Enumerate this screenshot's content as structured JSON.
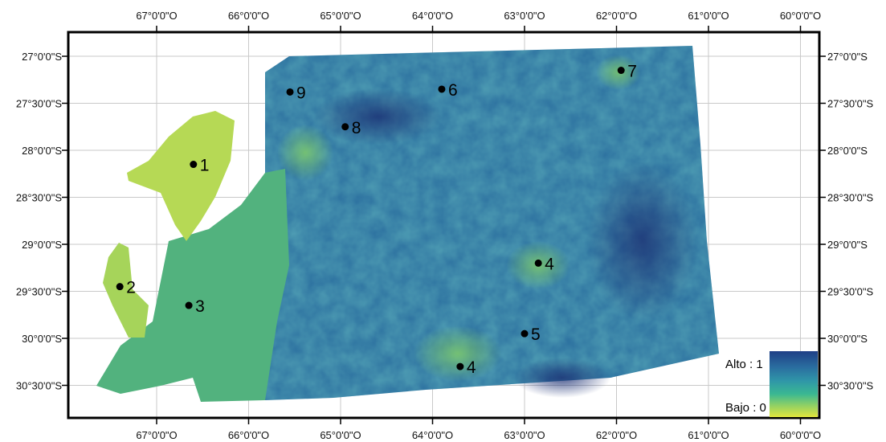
{
  "map": {
    "lon_ticks": [
      {
        "lon": -67,
        "label": "67°0'0\"O"
      },
      {
        "lon": -66,
        "label": "66°0'0\"O"
      },
      {
        "lon": -65,
        "label": "65°0'0\"O"
      },
      {
        "lon": -64,
        "label": "64°0'0\"O"
      },
      {
        "lon": -63,
        "label": "63°0'0\"O"
      },
      {
        "lon": -62,
        "label": "62°0'0\"O"
      },
      {
        "lon": -61,
        "label": "61°0'0\"O"
      },
      {
        "lon": -60,
        "label": "60°0'0\"O"
      }
    ],
    "lat_ticks": [
      {
        "lat": -27.0,
        "label": "27°0'0\"S"
      },
      {
        "lat": -27.5,
        "label": "27°30'0\"S"
      },
      {
        "lat": -28.0,
        "label": "28°0'0\"S"
      },
      {
        "lat": -28.5,
        "label": "28°30'0\"S"
      },
      {
        "lat": -29.0,
        "label": "29°0'0\"S"
      },
      {
        "lat": -29.5,
        "label": "29°30'0\"S"
      },
      {
        "lat": -30.0,
        "label": "30°0'0\"S"
      },
      {
        "lat": -30.5,
        "label": "30°30'0\"S"
      }
    ],
    "points": [
      {
        "label": "1",
        "lon": -66.6,
        "lat": -28.15
      },
      {
        "label": "2",
        "lon": -67.4,
        "lat": -29.45
      },
      {
        "label": "3",
        "lon": -66.65,
        "lat": -29.65
      },
      {
        "label": "4",
        "lon": -62.85,
        "lat": -29.2
      },
      {
        "label": "5",
        "lon": -63.0,
        "lat": -29.95
      },
      {
        "label": "4",
        "lon": -63.7,
        "lat": -30.3
      },
      {
        "label": "6",
        "lon": -63.9,
        "lat": -27.35
      },
      {
        "label": "7",
        "lon": -61.95,
        "lat": -27.15
      },
      {
        "label": "8",
        "lon": -64.95,
        "lat": -27.75
      },
      {
        "label": "9",
        "lon": -65.55,
        "lat": -27.38
      }
    ]
  },
  "legend": {
    "high_label": "Alto : 1",
    "low_label": "Bajo : 0",
    "colors": [
      "#1f3f86",
      "#2a6fa0",
      "#2f96a8",
      "#3ab892",
      "#8fd065",
      "#e2e53c"
    ]
  }
}
